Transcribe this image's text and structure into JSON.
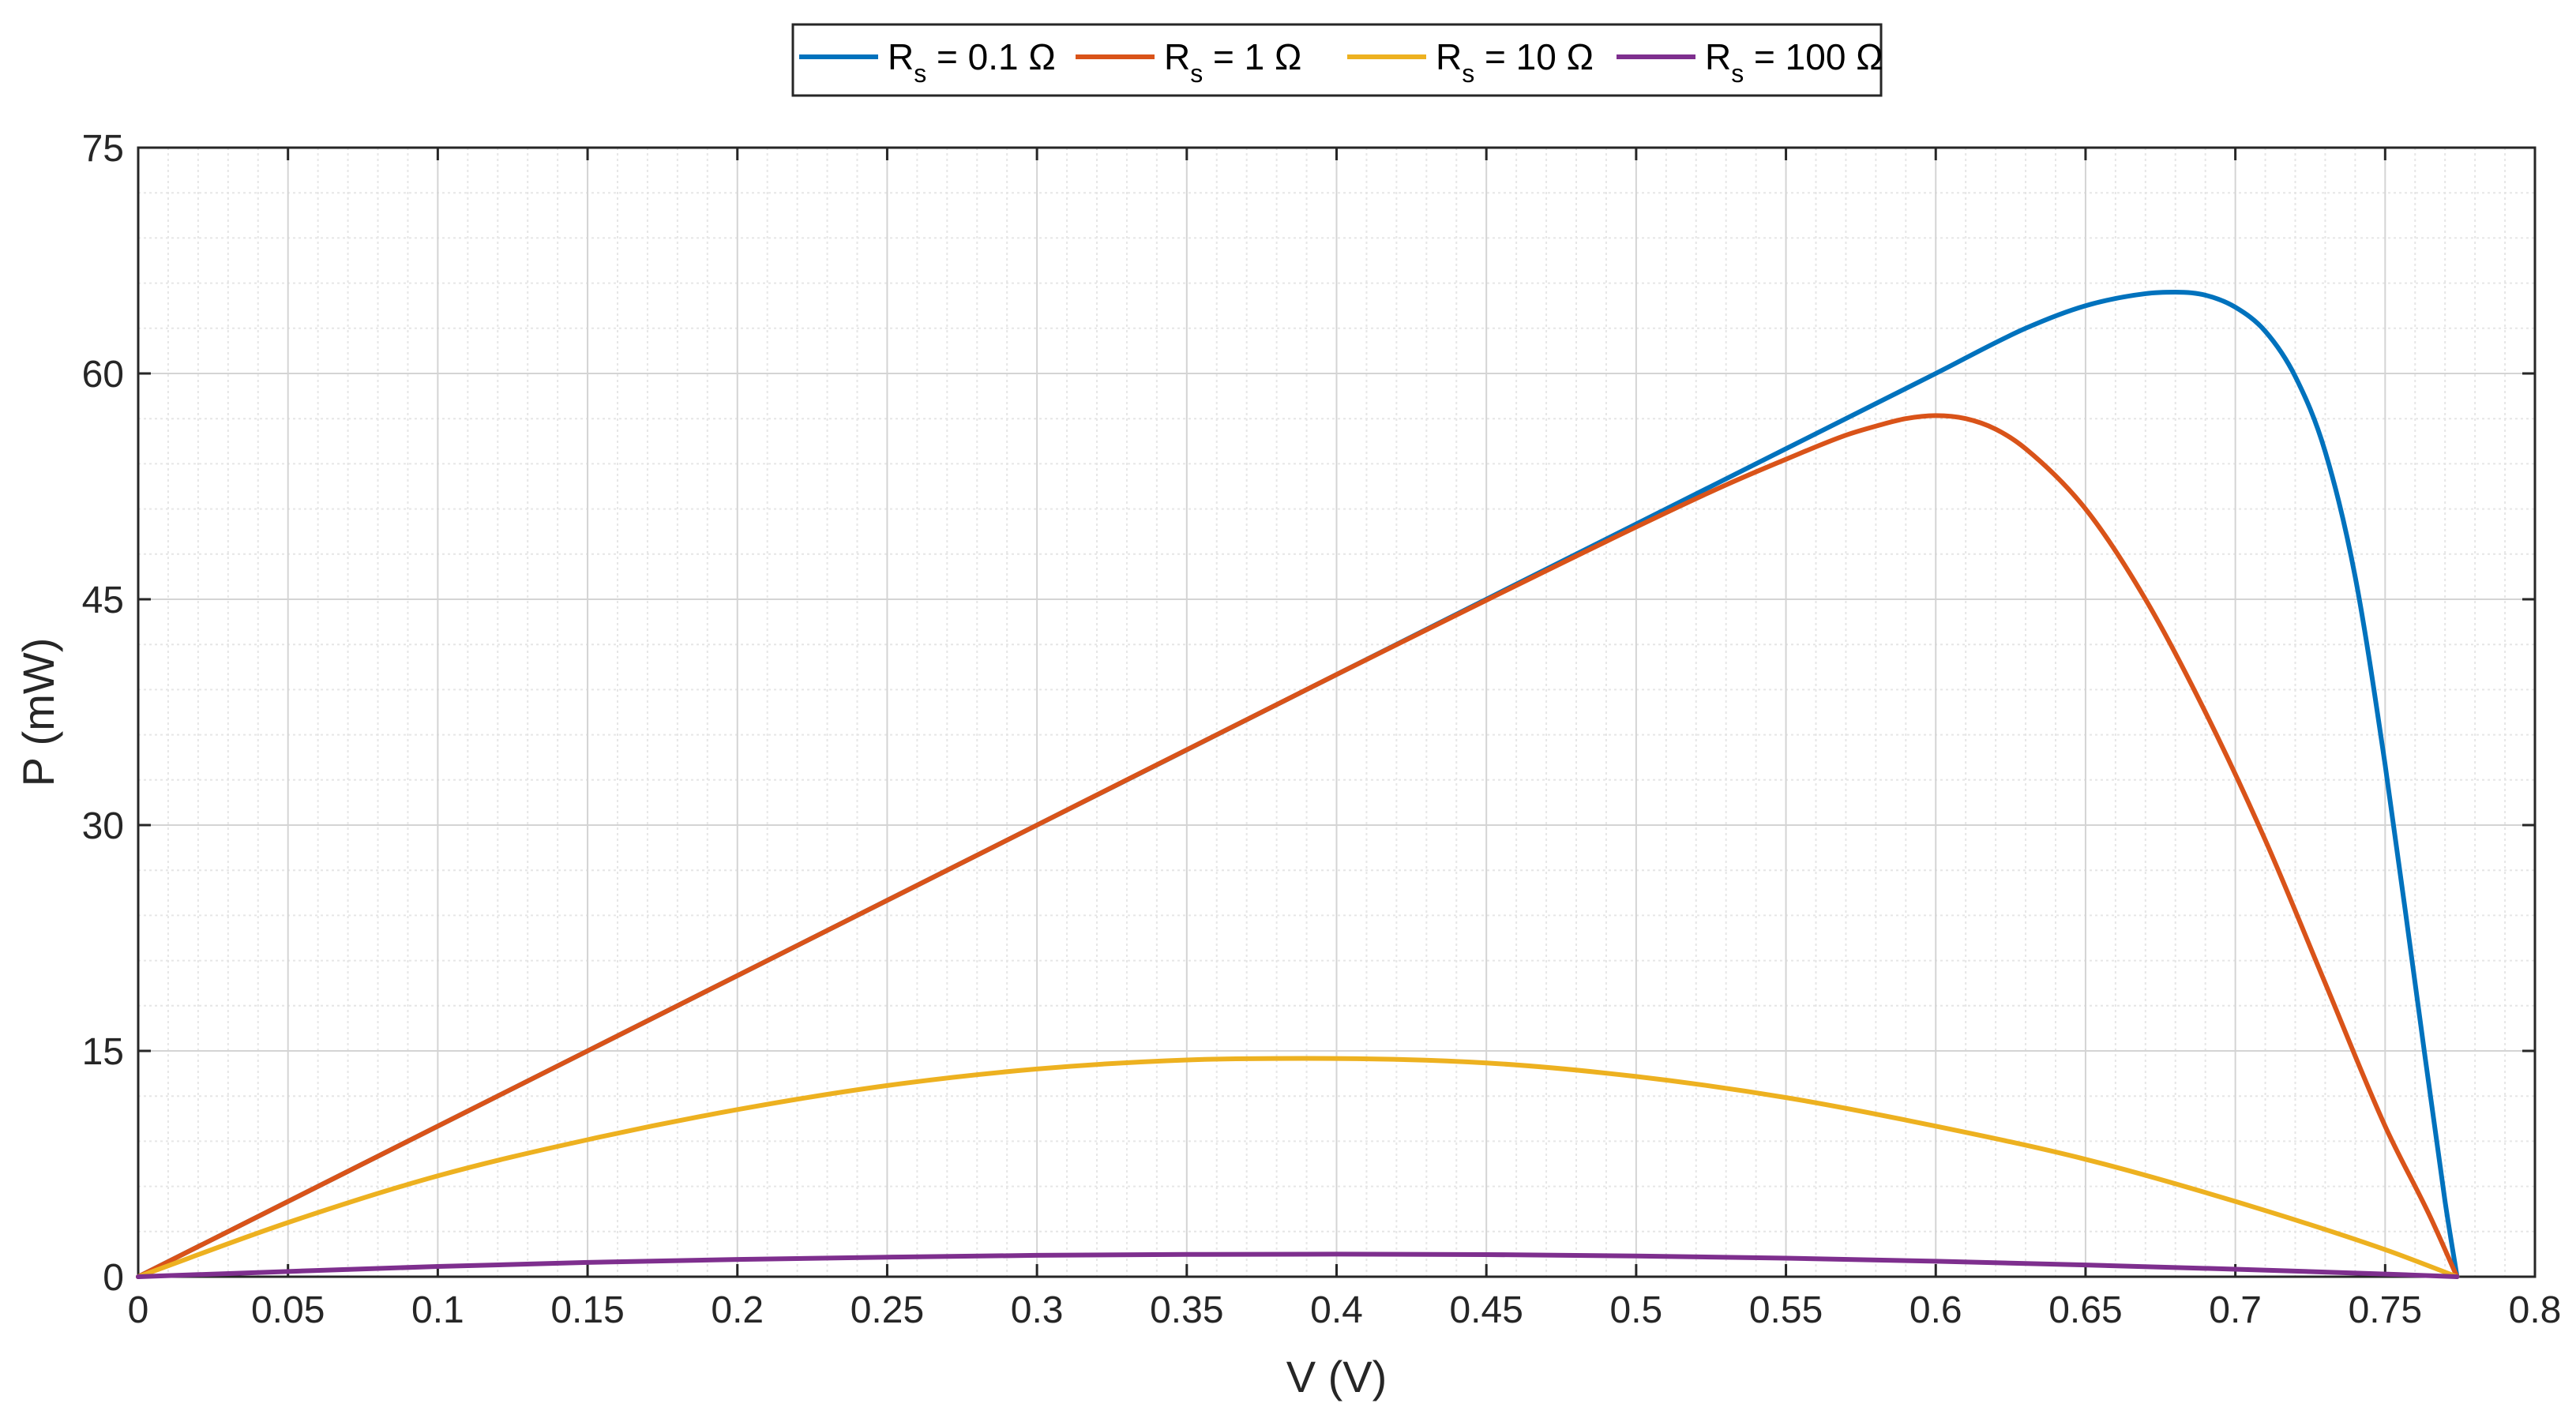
{
  "chart_data": {
    "type": "line",
    "xlabel": "V (V)",
    "ylabel": "P (mW)",
    "xlim": [
      0,
      0.8
    ],
    "ylim": [
      0,
      75
    ],
    "x_ticks": [
      "0",
      "0.05",
      "0.1",
      "0.15",
      "0.2",
      "0.25",
      "0.3",
      "0.35",
      "0.4",
      "0.45",
      "0.5",
      "0.55",
      "0.6",
      "0.65",
      "0.7",
      "0.75",
      "0.8"
    ],
    "y_ticks": [
      "0",
      "15",
      "30",
      "45",
      "60",
      "75"
    ],
    "grid": true,
    "minor_grid": true,
    "legend_position": "top-center, outside plot, horizontal",
    "series": [
      {
        "name": "R_s = 0.1 Ω",
        "label_main": "R",
        "label_sub": "s",
        "label_rest": " = 0.1 Ω",
        "color": "#0072BD",
        "x": [
          0,
          0.1,
          0.2,
          0.3,
          0.4,
          0.5,
          0.55,
          0.6,
          0.63,
          0.65,
          0.67,
          0.68,
          0.69,
          0.7,
          0.71,
          0.72,
          0.73,
          0.74,
          0.75,
          0.76,
          0.77,
          0.774
        ],
        "y": [
          0,
          10,
          20,
          30,
          40,
          50,
          55,
          60,
          63,
          64.5,
          65.3,
          65.4,
          65.2,
          64.4,
          62.8,
          59.8,
          54.8,
          46.5,
          34,
          19.5,
          5,
          0
        ]
      },
      {
        "name": "R_s = 1 Ω",
        "label_main": "R",
        "label_sub": "s",
        "label_rest": " = 1 Ω",
        "color": "#D95319",
        "x": [
          0,
          0.1,
          0.2,
          0.3,
          0.4,
          0.5,
          0.53,
          0.55,
          0.57,
          0.58,
          0.59,
          0.6,
          0.61,
          0.62,
          0.63,
          0.65,
          0.67,
          0.69,
          0.71,
          0.73,
          0.75,
          0.765,
          0.774
        ],
        "y": [
          0,
          10,
          20,
          30,
          40,
          49.8,
          52.6,
          54.3,
          55.9,
          56.5,
          57,
          57.2,
          57,
          56.3,
          55,
          51,
          45,
          37.5,
          29,
          19.5,
          10,
          4,
          0
        ]
      },
      {
        "name": "R_s = 10 Ω",
        "label_main": "R",
        "label_sub": "s",
        "label_rest": " = 10 Ω",
        "color": "#EDB120",
        "x": [
          0,
          0.05,
          0.1,
          0.15,
          0.2,
          0.25,
          0.3,
          0.35,
          0.39,
          0.45,
          0.5,
          0.55,
          0.6,
          0.65,
          0.7,
          0.75,
          0.774
        ],
        "y": [
          0,
          3.6,
          6.7,
          9.1,
          11.1,
          12.7,
          13.8,
          14.4,
          14.5,
          14.2,
          13.3,
          11.9,
          10,
          7.8,
          5,
          1.8,
          0
        ]
      },
      {
        "name": "R_s = 100 Ω",
        "label_main": "R",
        "label_sub": "s",
        "label_rest": " = 100 Ω",
        "color": "#7E2F8E",
        "x": [
          0,
          0.05,
          0.1,
          0.15,
          0.2,
          0.25,
          0.3,
          0.35,
          0.4,
          0.45,
          0.5,
          0.55,
          0.6,
          0.65,
          0.7,
          0.75,
          0.774
        ],
        "y": [
          0,
          0.35,
          0.68,
          0.95,
          1.15,
          1.3,
          1.42,
          1.48,
          1.5,
          1.47,
          1.38,
          1.23,
          1.03,
          0.78,
          0.5,
          0.18,
          0
        ]
      }
    ]
  }
}
